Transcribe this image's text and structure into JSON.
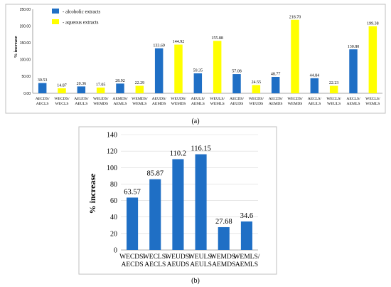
{
  "colors": {
    "alcoholic": "#1f6fc5",
    "aqueous": "#ffff00"
  },
  "chart_data": [
    {
      "type": "bar",
      "panel_tag": "(a)",
      "ylabel": "% increase",
      "ylim": [
        0,
        250
      ],
      "yticks": [
        "0.00",
        "50.00",
        "100.00",
        "150.00",
        "200.00",
        "250.00"
      ],
      "ytick_values": [
        0,
        50,
        100,
        150,
        200,
        250
      ],
      "grid": false,
      "legend_position": "top-left",
      "legend": [
        {
          "label": "- alcoholic extracts",
          "color": "#1f6fc5"
        },
        {
          "label": "- aqueous extracts",
          "color": "#ffff00"
        }
      ],
      "categories": [
        [
          "AECDS/",
          "AECLS"
        ],
        [
          "WECDS/",
          "WECLS"
        ],
        [
          "AEUDS/",
          "AEULS"
        ],
        [
          "WEUDS/",
          "WEMDS"
        ],
        [
          "AEMDS/",
          "AEMLS"
        ],
        [
          "WEMDS/",
          "WEMLS"
        ],
        [
          "AEUDS/",
          "AEMDS"
        ],
        [
          "WEUDS/",
          "WEMDS"
        ],
        [
          "AEULS/",
          "AEMLS"
        ],
        [
          "WEULS/",
          "WEMLS"
        ],
        [
          "AECDS/",
          "AEUDS"
        ],
        [
          "WECDS/",
          "WEUDS"
        ],
        [
          "AECDS/",
          "AEMDS"
        ],
        [
          "WECDS/",
          "WEMDS"
        ],
        [
          "AECLS/",
          "AEULS"
        ],
        [
          "WECLS/",
          "WEULS"
        ],
        [
          "AECLS/",
          "AEMLS"
        ],
        [
          "WECLS/",
          "WEMLS"
        ]
      ],
      "values": [
        30.53,
        14.87,
        20.36,
        17.05,
        28.92,
        22.29,
        133.69,
        144.92,
        59.35,
        155.88,
        57.08,
        24.55,
        48.77,
        218.7,
        44.84,
        22.23,
        130.8,
        199.38
      ],
      "value_labels": [
        "30.53",
        "14.87",
        "20.36",
        "17.05",
        "28.92",
        "22.29",
        "133.69",
        "144.92",
        "59.35",
        "155.88",
        "57.08",
        "24.55",
        "48.77",
        "218.70",
        "44.84",
        "22.23",
        "130.80",
        "199.38"
      ],
      "series_type": [
        "alcoholic",
        "aqueous",
        "alcoholic",
        "aqueous",
        "alcoholic",
        "aqueous",
        "alcoholic",
        "aqueous",
        "alcoholic",
        "aqueous",
        "alcoholic",
        "aqueous",
        "alcoholic",
        "aqueous",
        "alcoholic",
        "aqueous",
        "alcoholic",
        "aqueous"
      ]
    },
    {
      "type": "bar",
      "panel_tag": "(b)",
      "ylabel": "% increase",
      "ylim": [
        0,
        140
      ],
      "yticks": [
        "0",
        "20",
        "40",
        "60",
        "80",
        "100",
        "120",
        "140"
      ],
      "ytick_values": [
        0,
        20,
        40,
        60,
        80,
        100,
        120,
        140
      ],
      "grid": true,
      "categories": [
        [
          "WECDS/",
          "AECDS"
        ],
        [
          "WECLS/",
          "AECLS"
        ],
        [
          "WEUDS/",
          "AEUDS"
        ],
        [
          "WEULS/",
          "AEULS"
        ],
        [
          "WEMDS/",
          "AEMDS"
        ],
        [
          "WEMLS/",
          "AEMLS"
        ]
      ],
      "values": [
        63.57,
        85.87,
        110.2,
        116.15,
        27.68,
        34.6
      ],
      "value_labels": [
        "63.57",
        "85.87",
        "110.2",
        "116.15",
        "27.68",
        "34.6"
      ],
      "series_type": [
        "alcoholic",
        "alcoholic",
        "alcoholic",
        "alcoholic",
        "alcoholic",
        "alcoholic"
      ]
    }
  ]
}
